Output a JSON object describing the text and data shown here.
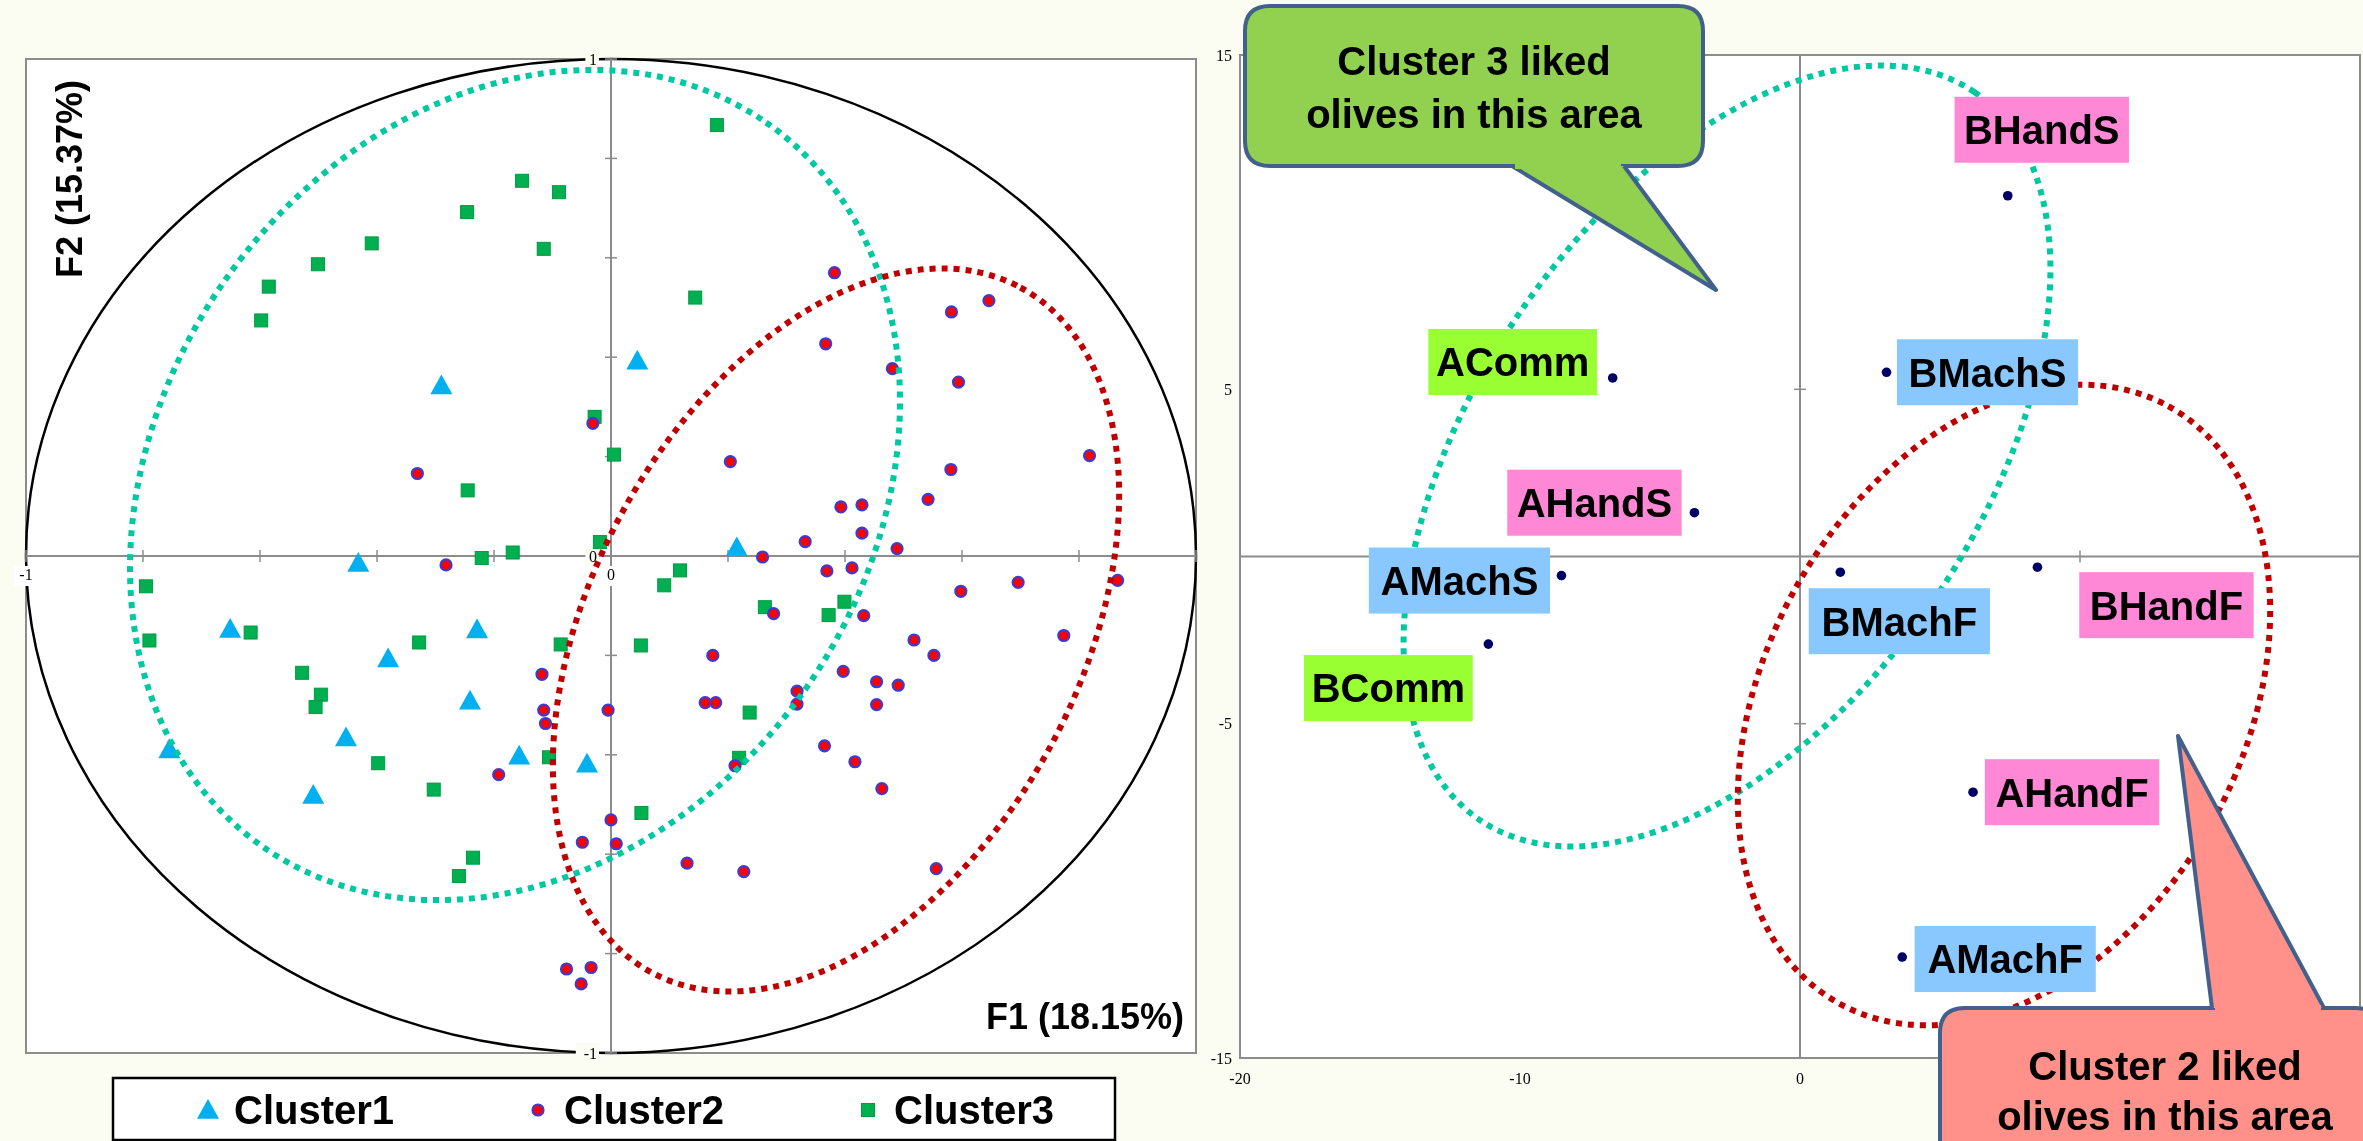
{
  "chart_data": [
    {
      "type": "scatter",
      "xlabel": "F1 (18.15%)",
      "ylabel": "F2 (15.37%)",
      "xlim": [
        -1,
        1
      ],
      "ylim": [
        -1,
        1
      ],
      "xticks": [
        -1,
        {
          "value": -0.8,
          "label": null
        },
        {
          "value": -0.6,
          "label": null
        },
        {
          "value": -0.4,
          "label": null
        },
        {
          "value": -0.2,
          "label": null
        },
        0,
        {
          "value": 0.2,
          "label": null
        },
        {
          "value": 0.4,
          "label": null
        },
        {
          "value": 0.6,
          "label": null
        },
        {
          "value": 0.8,
          "label": null
        },
        {
          "value": 1,
          "label": null
        }
      ],
      "yticks": [
        -1,
        {
          "value": -0.8,
          "label": null
        },
        {
          "value": -0.6,
          "label": null
        },
        {
          "value": -0.4,
          "label": null
        },
        {
          "value": -0.2,
          "label": null
        },
        0,
        {
          "value": 0.2,
          "label": null
        },
        {
          "value": 0.4,
          "label": null
        },
        {
          "value": 0.6,
          "label": null
        },
        {
          "value": 0.8,
          "label": null
        },
        1
      ],
      "legend": "bottom",
      "series": [
        {
          "name": "Cluster1",
          "color": "#00b0f0",
          "marker": "triangle",
          "x": [
            -0.29,
            -0.432,
            0.045,
            0.215,
            -0.651,
            -0.229,
            -0.381,
            -0.241,
            -0.453,
            -0.755,
            -0.509,
            -0.157,
            -0.041
          ],
          "values": [
            0.343,
            -0.014,
            0.393,
            0.017,
            -0.147,
            -0.148,
            -0.206,
            -0.291,
            -0.365,
            -0.389,
            -0.481,
            -0.402,
            -0.418
          ]
        },
        {
          "name": "Cluster2",
          "color": "#ff0000",
          "marker": "circle",
          "x": [
            -0.331,
            -0.282,
            0.382,
            0.646,
            0.582,
            0.367,
            0.481,
            0.594,
            0.818,
            -0.031,
            0.204,
            0.581,
            0.542,
            0.393,
            0.429,
            0.429,
            0.332,
            0.489,
            0.259,
            0.369,
            0.412,
            0.598,
            0.696,
            0.866,
            0.278,
            0.432,
            0.518,
            0.552,
            0.774,
            0.174,
            0.397,
            0.454,
            0.491,
            0.161,
            0.179,
            0.318,
            0.318,
            0.454,
            -0.005,
            -0.115,
            -0.112,
            -0.118,
            0.365,
            0.417,
            0.463,
            0.212,
            0.0,
            -0.049,
            0.009,
            0.13,
            0.227,
            0.556,
            -0.076,
            -0.034,
            -0.051,
            -0.192
          ],
          "values": [
            0.166,
            -0.018,
            0.57,
            0.514,
            0.491,
            0.427,
            0.377,
            0.35,
            0.202,
            0.267,
            0.19,
            0.174,
            0.114,
            0.099,
            0.103,
            0.046,
            0.029,
            0.015,
            -0.002,
            -0.03,
            -0.024,
            -0.071,
            -0.053,
            -0.049,
            -0.116,
            -0.12,
            -0.169,
            -0.2,
            -0.16,
            -0.2,
            -0.232,
            -0.253,
            -0.26,
            -0.295,
            -0.295,
            -0.272,
            -0.298,
            -0.299,
            -0.31,
            -0.31,
            -0.337,
            -0.238,
            -0.382,
            -0.414,
            -0.468,
            -0.422,
            -0.531,
            -0.576,
            -0.579,
            -0.618,
            -0.635,
            -0.629,
            -0.831,
            -0.828,
            -0.861,
            -0.44
          ]
        },
        {
          "name": "Cluster3",
          "color": "#00b050",
          "marker": "square",
          "x": [
            -0.152,
            -0.089,
            -0.246,
            -0.115,
            -0.409,
            -0.501,
            -0.585,
            -0.598,
            -0.245,
            -0.221,
            -0.168,
            0.181,
            0.144,
            -0.028,
            0.005,
            -0.019,
            0.118,
            0.091,
            0.263,
            0.372,
            0.399,
            -0.086,
            0.051,
            0.237,
            0.219,
            -0.106,
            0.052,
            -0.795,
            -0.789,
            -0.616,
            -0.328,
            -0.528,
            -0.496,
            -0.505,
            -0.398,
            -0.303,
            -0.236,
            -0.26
          ],
          "values": [
            0.755,
            0.732,
            0.692,
            0.618,
            0.629,
            0.587,
            0.542,
            0.474,
            0.132,
            -0.004,
            0.007,
            0.867,
            0.52,
            0.28,
            0.204,
            0.028,
            -0.029,
            -0.059,
            -0.103,
            -0.119,
            -0.092,
            -0.178,
            -0.18,
            -0.315,
            -0.406,
            -0.405,
            -0.517,
            -0.061,
            -0.17,
            -0.154,
            -0.174,
            -0.235,
            -0.279,
            -0.304,
            -0.417,
            -0.47,
            -0.607,
            -0.644
          ]
        }
      ]
    },
    {
      "type": "scatter",
      "xlim": [
        -20,
        20
      ],
      "ylim": [
        -15,
        15
      ],
      "xticks": [
        -20,
        -10,
        0,
        {
          "value": 10,
          "label": null
        },
        {
          "value": 20,
          "label": null
        }
      ],
      "yticks": [
        -15,
        -5,
        5,
        15
      ],
      "series": [
        {
          "color": "#000066",
          "marker": "circle",
          "x": [
            7.42,
            3.09,
            -6.69,
            -3.77,
            -8.52,
            -11.13,
            1.44,
            8.48,
            6.18,
            3.65
          ],
          "values": [
            10.79,
            5.51,
            5.34,
            1.31,
            -0.57,
            -2.62,
            -0.47,
            -0.32,
            -7.05,
            -11.98
          ]
        }
      ],
      "annotations": [
        {
          "text": "BHandS",
          "x": 7.42,
          "y": 10.79
        },
        {
          "text": "BMachS",
          "x": 3.09,
          "y": 5.51
        },
        {
          "text": "AComm",
          "x": -6.69,
          "y": 5.34
        },
        {
          "text": "AHandS",
          "x": -3.77,
          "y": 1.31
        },
        {
          "text": "AMachS",
          "x": -8.52,
          "y": -0.57
        },
        {
          "text": "BComm",
          "x": -11.13,
          "y": -2.62
        },
        {
          "text": "BMachF",
          "x": 1.44,
          "y": -0.47
        },
        {
          "text": "BHandF",
          "x": 8.48,
          "y": -0.32
        },
        {
          "text": "AHandF",
          "x": 6.18,
          "y": -7.05
        },
        {
          "text": "AMachF",
          "x": 3.65,
          "y": -11.98
        },
        "Cluster 3 liked olives in this area",
        "Cluster 2 liked olives in this area"
      ]
    }
  ]
}
